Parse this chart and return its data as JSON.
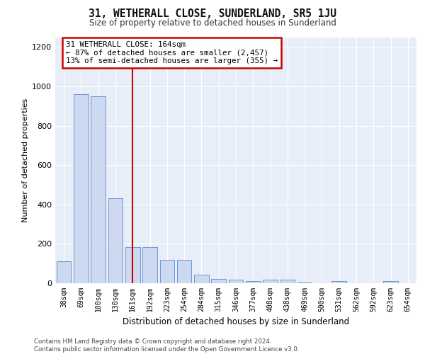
{
  "title": "31, WETHERALL CLOSE, SUNDERLAND, SR5 1JU",
  "subtitle": "Size of property relative to detached houses in Sunderland",
  "xlabel": "Distribution of detached houses by size in Sunderland",
  "ylabel": "Number of detached properties",
  "categories": [
    "38sqm",
    "69sqm",
    "100sqm",
    "130sqm",
    "161sqm",
    "192sqm",
    "223sqm",
    "254sqm",
    "284sqm",
    "315sqm",
    "346sqm",
    "377sqm",
    "408sqm",
    "438sqm",
    "469sqm",
    "500sqm",
    "531sqm",
    "562sqm",
    "592sqm",
    "623sqm",
    "654sqm"
  ],
  "values": [
    110,
    960,
    950,
    430,
    185,
    185,
    120,
    120,
    43,
    20,
    18,
    10,
    18,
    18,
    5,
    0,
    12,
    0,
    0,
    10,
    0
  ],
  "bar_color": "#ccd9f0",
  "bar_edge_color": "#5b8ac7",
  "vline_index": 4,
  "vline_color": "#cc0000",
  "annotation_text": "31 WETHERALL CLOSE: 164sqm\n← 87% of detached houses are smaller (2,457)\n13% of semi-detached houses are larger (355) →",
  "annotation_box_color": "#ffffff",
  "annotation_box_edge": "#cc0000",
  "ylim": [
    0,
    1250
  ],
  "yticks": [
    0,
    200,
    400,
    600,
    800,
    1000,
    1200
  ],
  "footnote": "Contains HM Land Registry data © Crown copyright and database right 2024.\nContains public sector information licensed under the Open Government Licence v3.0.",
  "plot_bg": "#e8eef8",
  "fig_bg": "#ffffff"
}
